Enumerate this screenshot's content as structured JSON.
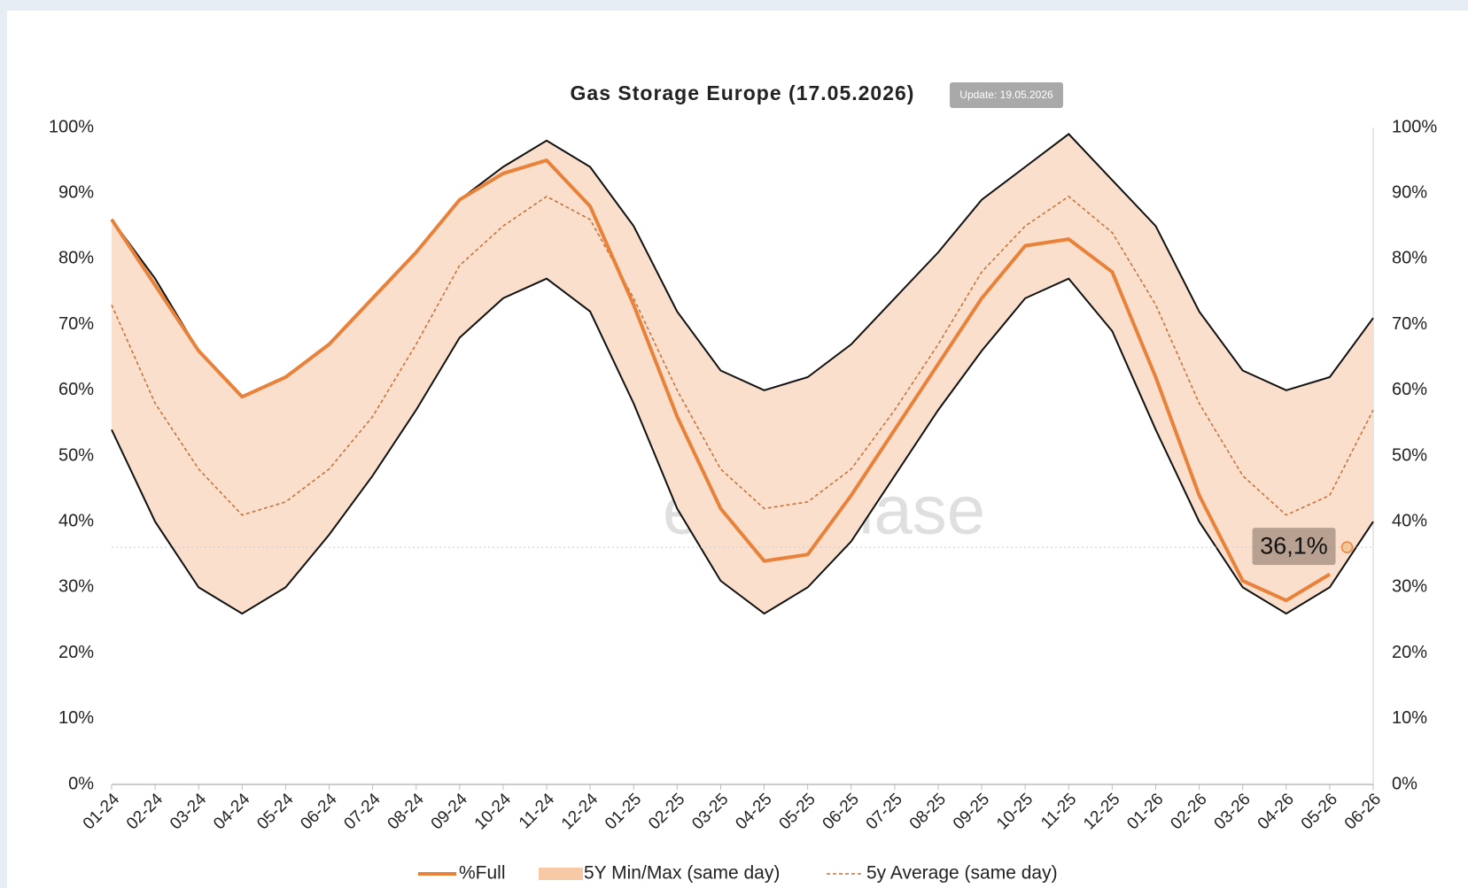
{
  "chart_data": {
    "type": "band-line",
    "title": "Gas Storage Europe (17.05.2026)",
    "badge": "Update: 19.05.2026",
    "watermark": "enerchase",
    "categories": [
      "01-24",
      "02-24",
      "03-24",
      "04-24",
      "05-24",
      "06-24",
      "07-24",
      "08-24",
      "09-24",
      "10-24",
      "11-24",
      "12-24",
      "01-25",
      "02-25",
      "03-25",
      "04-25",
      "05-25",
      "06-25",
      "07-25",
      "08-25",
      "09-25",
      "10-25",
      "11-25",
      "12-25",
      "01-26",
      "02-26",
      "03-26",
      "04-26",
      "05-26",
      "06-26"
    ],
    "series": [
      {
        "name": "%Full",
        "color": "#e8823a",
        "values": [
          86,
          76,
          66,
          59,
          62,
          67,
          74,
          81,
          89,
          93,
          95,
          88,
          73,
          56,
          42,
          34,
          35,
          44,
          54,
          64,
          74,
          82,
          83,
          78,
          62,
          44,
          31,
          28,
          32,
          null
        ]
      },
      {
        "name": "5Y Min/Max (same day)",
        "color": "#fadfcc",
        "edge_color": "#111111",
        "max": [
          86,
          77,
          66,
          59,
          62,
          67,
          74,
          81,
          89,
          94,
          98,
          94,
          85,
          72,
          63,
          60,
          62,
          67,
          74,
          81,
          89,
          94,
          99,
          92,
          85,
          72,
          63,
          60,
          62,
          71
        ],
        "min": [
          54,
          40,
          30,
          26,
          30,
          38,
          47,
          57,
          68,
          74,
          77,
          72,
          58,
          42,
          31,
          26,
          30,
          37,
          47,
          57,
          66,
          74,
          77,
          69,
          54,
          40,
          30,
          26,
          30,
          40
        ]
      },
      {
        "name": "5y Average (same day)",
        "color": "#c8743a",
        "dashed": true,
        "values": [
          73,
          58,
          48,
          41,
          43,
          48,
          56,
          67,
          79,
          85,
          89.5,
          86,
          74,
          60,
          48,
          42,
          43,
          48,
          57,
          67,
          78,
          85,
          89.5,
          84,
          73,
          58,
          47,
          41,
          44,
          57
        ]
      }
    ],
    "annotation": {
      "value": 36.1,
      "label": "36,1%"
    },
    "ylim": [
      0,
      100
    ],
    "yticks": [
      {
        "value": 0,
        "label": "0%"
      },
      {
        "value": 10,
        "label": "10%"
      },
      {
        "value": 20,
        "label": "20%"
      },
      {
        "value": 30,
        "label": "30%"
      },
      {
        "value": 40,
        "label": "40%"
      },
      {
        "value": 50,
        "label": "50%"
      },
      {
        "value": 60,
        "label": "60%"
      },
      {
        "value": 70,
        "label": "70%"
      },
      {
        "value": 80,
        "label": "80%"
      },
      {
        "value": 90,
        "label": "90%"
      },
      {
        "value": 100,
        "label": "100%"
      }
    ],
    "y2lim": [
      0,
      100
    ],
    "y2ticks": [
      {
        "value": 0,
        "label": "0%"
      },
      {
        "value": 10,
        "label": "10%"
      },
      {
        "value": 20,
        "label": "20%"
      },
      {
        "value": 30,
        "label": "30%"
      },
      {
        "value": 40,
        "label": "40%"
      },
      {
        "value": 50,
        "label": "50%"
      },
      {
        "value": 60,
        "label": "60%"
      },
      {
        "value": 70,
        "label": "70%"
      },
      {
        "value": 80,
        "label": "80%"
      },
      {
        "value": 90,
        "label": "90%"
      },
      {
        "value": 100,
        "label": "100%"
      }
    ],
    "grid": false
  }
}
